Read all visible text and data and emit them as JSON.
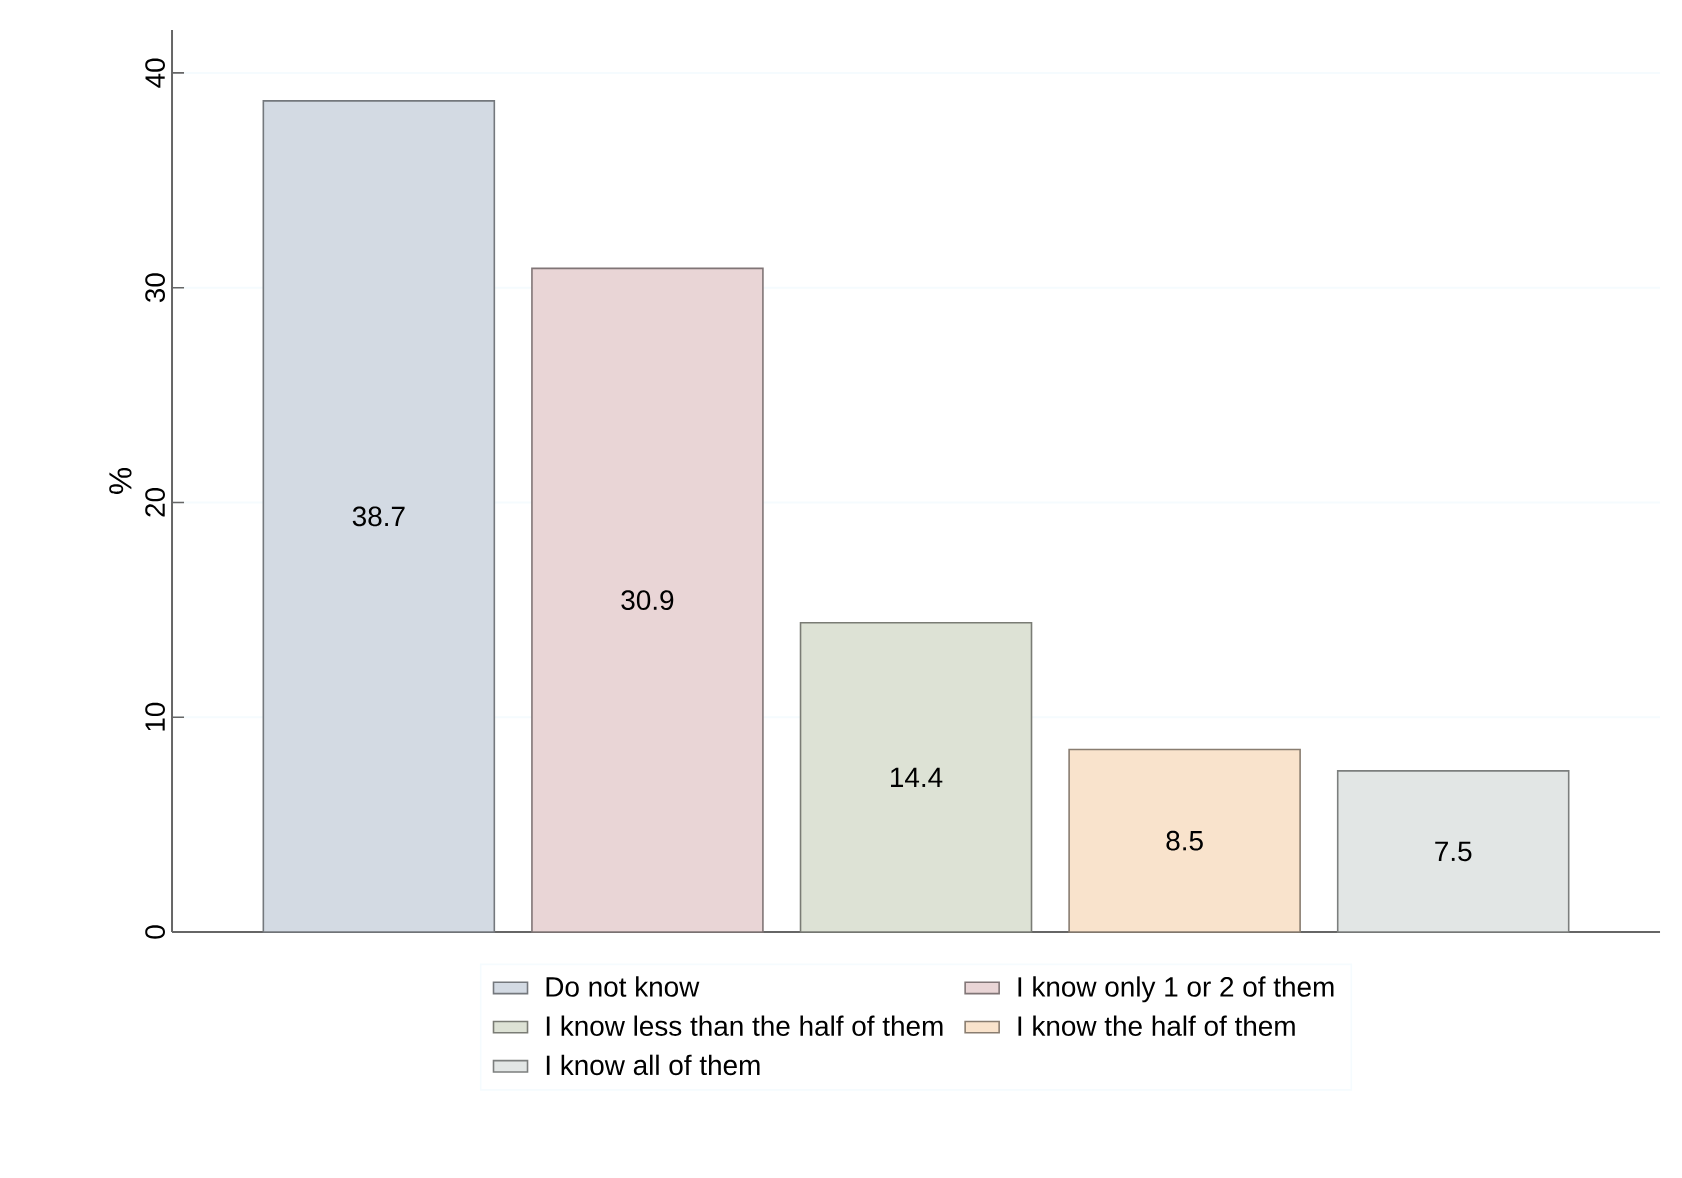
{
  "chart_data": {
    "type": "bar",
    "ylabel": "%",
    "categories": [
      null,
      null,
      null,
      null,
      null
    ],
    "series": [
      {
        "name": "Do not know",
        "color": "#d3dae3",
        "values": [
          38.7,
          null,
          null,
          null,
          null
        ]
      },
      {
        "name": "I know only 1 or 2 of them",
        "color": "#e9d5d6",
        "values": [
          null,
          30.9,
          null,
          null,
          null
        ]
      },
      {
        "name": "I know less than the half of them",
        "color": "#dde2d5",
        "values": [
          null,
          null,
          14.4,
          null,
          null
        ]
      },
      {
        "name": "I know  the half of them",
        "color": "#f9e3cc",
        "values": [
          null,
          null,
          null,
          8.5,
          null
        ]
      },
      {
        "name": "I know all of them",
        "color": "#e2e6e5",
        "values": [
          null,
          null,
          null,
          null,
          7.5
        ]
      }
    ],
    "ylim": [
      0,
      42
    ],
    "yticks": [
      0,
      10,
      20,
      30,
      40
    ],
    "grid": "y",
    "legend": "bottom",
    "data_labels": true
  }
}
